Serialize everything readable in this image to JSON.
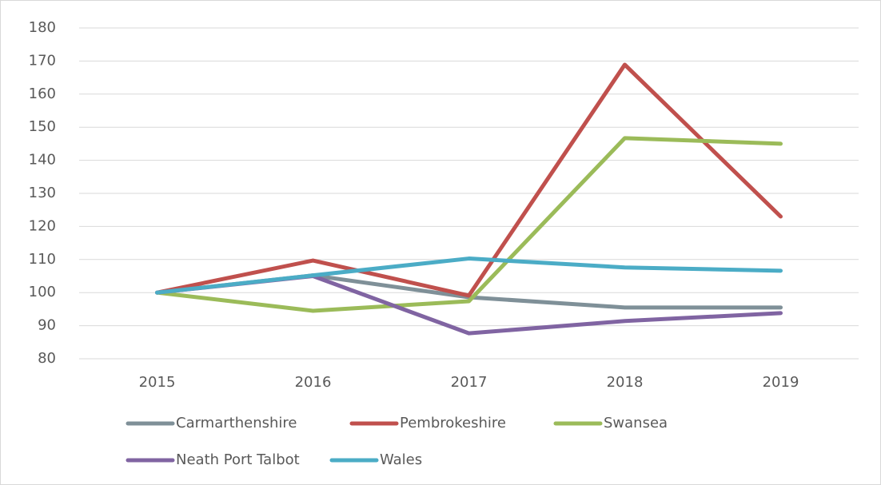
{
  "chart_data": {
    "type": "line",
    "categories": [
      "2015",
      "2016",
      "2017",
      "2018",
      "2019"
    ],
    "series": [
      {
        "name": "Carmarthenshire",
        "color": "#7f9098",
        "values": [
          100,
          105.2,
          98.6,
          95.5,
          95.5
        ]
      },
      {
        "name": "Pembrokeshire",
        "color": "#c0504d",
        "values": [
          100,
          109.7,
          99.1,
          168.9,
          123
        ]
      },
      {
        "name": "Swansea",
        "color": "#9bbb59",
        "values": [
          100,
          94.5,
          97.4,
          146.7,
          145
        ]
      },
      {
        "name": "Neath Port Talbot",
        "color": "#8064a2",
        "values": [
          100,
          105,
          87.7,
          91.4,
          93.8
        ]
      },
      {
        "name": "Wales",
        "color": "#4bacc6",
        "values": [
          100,
          105.2,
          110.3,
          107.6,
          106.6
        ]
      }
    ],
    "ylim": [
      80,
      180
    ],
    "yticks": [
      80,
      90,
      100,
      110,
      120,
      130,
      140,
      150,
      160,
      170,
      180
    ],
    "grid": true,
    "legend": "bottom"
  }
}
